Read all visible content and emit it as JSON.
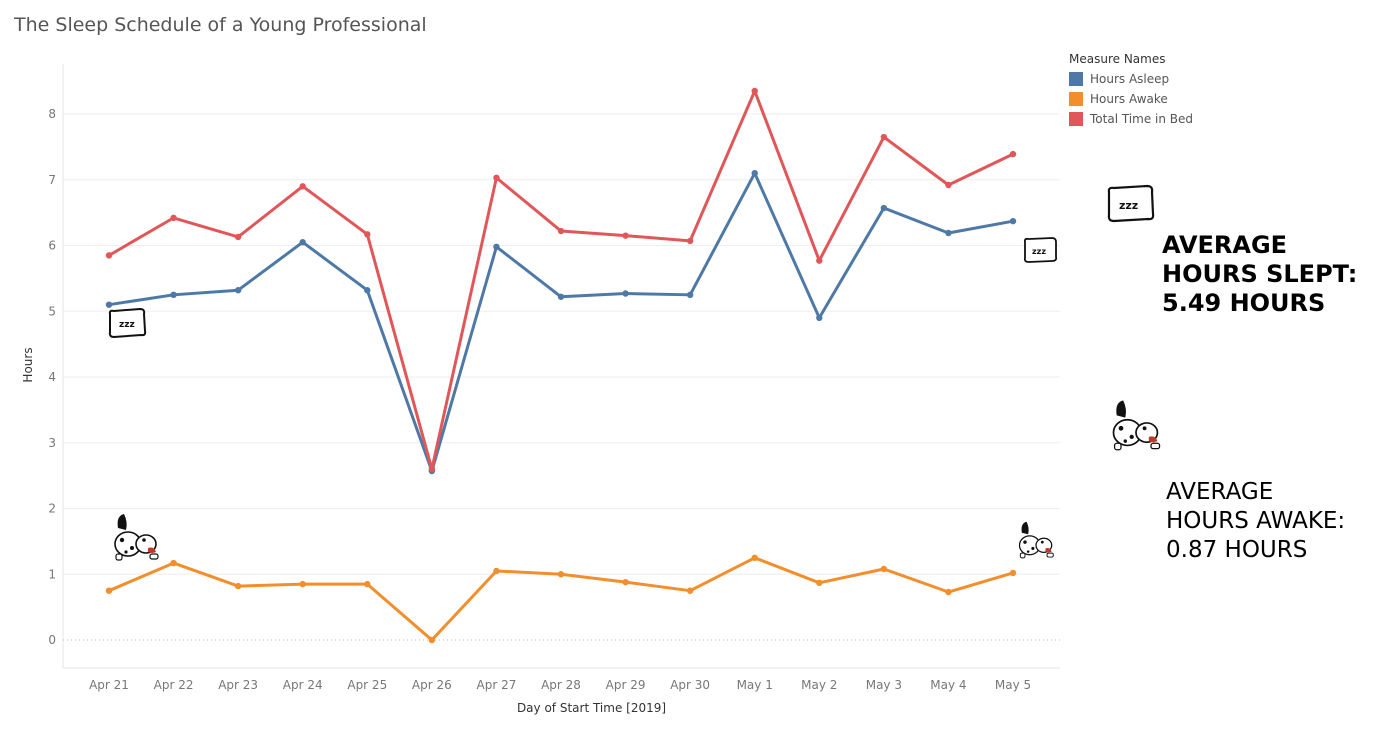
{
  "title": "The Sleep Schedule of a Young Professional",
  "legend": {
    "title": "Measure Names",
    "items": [
      {
        "label": "Hours Asleep",
        "color": "#4e79a7"
      },
      {
        "label": "Hours Awake",
        "color": "#f28e2b"
      },
      {
        "label": "Total Time in Bed",
        "color": "#e15759"
      }
    ]
  },
  "stats": {
    "slept": [
      "AVERAGE",
      "HOURS SLEPT:",
      "5.49 HOURS"
    ],
    "awake": [
      "AVERAGE",
      "HOURS AWAKE:",
      "0.87 HOURS"
    ]
  },
  "chart_data": {
    "type": "line",
    "title": "The Sleep Schedule of a Young Professional",
    "xlabel": "Day of Start Time [2019]",
    "ylabel": "Hours",
    "categories": [
      "Apr 21",
      "Apr 22",
      "Apr 23",
      "Apr 24",
      "Apr 25",
      "Apr 26",
      "Apr 27",
      "Apr 28",
      "Apr 29",
      "Apr 30",
      "May 1",
      "May 2",
      "May 3",
      "May 4",
      "May 5"
    ],
    "ylim": [
      0,
      8.5
    ],
    "yticks": [
      0,
      1,
      2,
      3,
      4,
      5,
      6,
      7,
      8
    ],
    "grid": true,
    "legend_position": "top-right",
    "series": [
      {
        "name": "Hours Asleep",
        "color": "#4e79a7",
        "values": [
          5.1,
          5.25,
          5.32,
          6.05,
          5.32,
          2.57,
          5.98,
          5.22,
          5.27,
          5.25,
          7.1,
          4.9,
          6.57,
          6.19,
          6.37
        ]
      },
      {
        "name": "Hours Awake",
        "color": "#f28e2b",
        "values": [
          0.75,
          1.17,
          0.82,
          0.85,
          0.85,
          0.0,
          1.05,
          1.0,
          0.88,
          0.75,
          1.25,
          0.87,
          1.08,
          0.73,
          1.02
        ]
      },
      {
        "name": "Total Time in Bed",
        "color": "#e15759",
        "values": [
          5.85,
          6.42,
          6.13,
          6.9,
          6.17,
          2.6,
          7.03,
          6.22,
          6.15,
          6.07,
          8.35,
          5.77,
          7.65,
          6.92,
          7.39
        ]
      }
    ]
  },
  "icons": {
    "pillow": "pillow-icon",
    "puppy": "puppy-icon"
  }
}
